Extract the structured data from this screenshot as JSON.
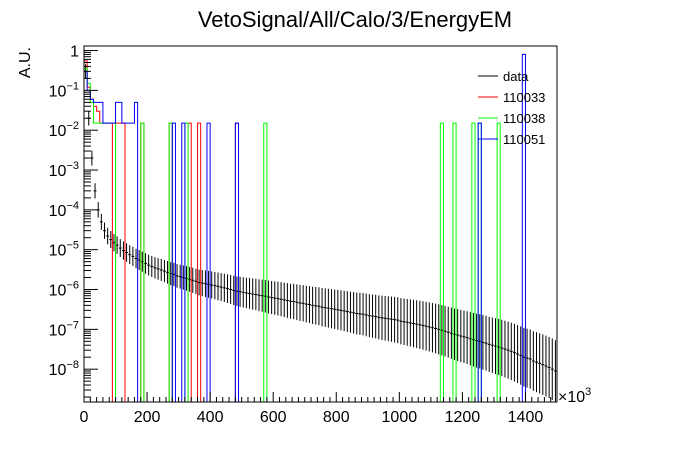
{
  "chart_data": {
    "type": "histogram",
    "title": "VetoSignal/All/Calo/3/EnergyEM",
    "ylabel": "A.U.",
    "xlabel": "",
    "x_exponent_label": "×10",
    "x_exponent_power": "3",
    "yscale": "log",
    "xlim": [
      0,
      1500
    ],
    "ylim": [
      1.5e-09,
      1.3
    ],
    "x_ticks": [
      0,
      200,
      400,
      600,
      800,
      1000,
      1200,
      1400
    ],
    "x_tick_labels": [
      "0",
      "200",
      "400",
      "600",
      "800",
      "1000",
      "1200",
      "1400"
    ],
    "y_ticks": [
      1e-08,
      1e-07,
      1e-06,
      1e-05,
      0.0001,
      0.001,
      0.01,
      0.1,
      1
    ],
    "y_tick_bases": [
      "10",
      "10",
      "10",
      "10",
      "10",
      "10",
      "10",
      "10",
      "1"
    ],
    "y_tick_exps": [
      "−8",
      "−7",
      "−6",
      "−5",
      "−4",
      "−3",
      "−2",
      "−1",
      ""
    ],
    "grid": false,
    "legend_position": "top-right",
    "bin_width": 10,
    "series": [
      {
        "name": "data",
        "color": "#000000",
        "style": "errorbar",
        "points": [
          [
            5,
            0.3
          ],
          [
            15,
            0.02
          ],
          [
            25,
            0.002
          ],
          [
            35,
            0.0003
          ],
          [
            45,
            0.0001
          ],
          [
            55,
            5e-05
          ],
          [
            65,
            3e-05
          ],
          [
            75,
            2.2e-05
          ],
          [
            85,
            1.8e-05
          ],
          [
            95,
            1.5e-05
          ],
          [
            105,
            1.3e-05
          ],
          [
            115,
            1.1e-05
          ],
          [
            125,
            9.5e-06
          ],
          [
            135,
            8.5e-06
          ],
          [
            145,
            7.5e-06
          ],
          [
            155,
            6.8e-06
          ],
          [
            165,
            6e-06
          ],
          [
            175,
            5.5e-06
          ],
          [
            185,
            5e-06
          ],
          [
            195,
            4.5e-06
          ],
          [
            205,
            4.1e-06
          ],
          [
            215,
            3.8e-06
          ],
          [
            225,
            3.5e-06
          ],
          [
            235,
            3.3e-06
          ],
          [
            245,
            3.1e-06
          ],
          [
            255,
            2.9e-06
          ],
          [
            265,
            2.7e-06
          ],
          [
            275,
            2.5e-06
          ],
          [
            285,
            2.4e-06
          ],
          [
            295,
            2.2e-06
          ],
          [
            305,
            2.1e-06
          ],
          [
            315,
            2e-06
          ],
          [
            325,
            1.9e-06
          ],
          [
            335,
            1.8e-06
          ],
          [
            345,
            1.7e-06
          ],
          [
            355,
            1.6e-06
          ],
          [
            365,
            1.5e-06
          ],
          [
            375,
            1.45e-06
          ],
          [
            385,
            1.4e-06
          ],
          [
            395,
            1.35e-06
          ],
          [
            405,
            1.3e-06
          ],
          [
            415,
            1.25e-06
          ],
          [
            425,
            1.2e-06
          ],
          [
            435,
            1.15e-06
          ],
          [
            445,
            1.1e-06
          ],
          [
            455,
            1.05e-06
          ],
          [
            465,
            1e-06
          ],
          [
            475,
            9.5e-07
          ],
          [
            485,
            9e-07
          ],
          [
            495,
            8.8e-07
          ],
          [
            505,
            8.5e-07
          ],
          [
            515,
            8.2e-07
          ],
          [
            525,
            8e-07
          ],
          [
            535,
            7.7e-07
          ],
          [
            545,
            7.5e-07
          ],
          [
            555,
            7.2e-07
          ],
          [
            565,
            7e-07
          ],
          [
            575,
            6.8e-07
          ],
          [
            585,
            6.5e-07
          ],
          [
            595,
            6.3e-07
          ],
          [
            605,
            6.1e-07
          ],
          [
            615,
            5.9e-07
          ],
          [
            625,
            5.7e-07
          ],
          [
            635,
            5.5e-07
          ],
          [
            645,
            5.3e-07
          ],
          [
            655,
            5.1e-07
          ],
          [
            665,
            5e-07
          ],
          [
            675,
            4.8e-07
          ],
          [
            685,
            4.6e-07
          ],
          [
            695,
            4.5e-07
          ],
          [
            705,
            4.3e-07
          ],
          [
            715,
            4.2e-07
          ],
          [
            725,
            4e-07
          ],
          [
            735,
            3.9e-07
          ],
          [
            745,
            3.8e-07
          ],
          [
            755,
            3.6e-07
          ],
          [
            765,
            3.5e-07
          ],
          [
            775,
            3.4e-07
          ],
          [
            785,
            3.3e-07
          ],
          [
            795,
            3.2e-07
          ],
          [
            805,
            3.1e-07
          ],
          [
            815,
            3e-07
          ],
          [
            825,
            2.9e-07
          ],
          [
            835,
            2.8e-07
          ],
          [
            845,
            2.7e-07
          ],
          [
            855,
            2.6e-07
          ],
          [
            865,
            2.5e-07
          ],
          [
            875,
            2.45e-07
          ],
          [
            885,
            2.4e-07
          ],
          [
            895,
            2.3e-07
          ],
          [
            905,
            2.2e-07
          ],
          [
            915,
            2.15e-07
          ],
          [
            925,
            2.1e-07
          ],
          [
            935,
            2e-07
          ],
          [
            945,
            1.95e-07
          ],
          [
            955,
            1.9e-07
          ],
          [
            965,
            1.85e-07
          ],
          [
            975,
            1.8e-07
          ],
          [
            985,
            1.75e-07
          ],
          [
            995,
            1.7e-07
          ],
          [
            1005,
            1.6e-07
          ],
          [
            1015,
            1.55e-07
          ],
          [
            1025,
            1.5e-07
          ],
          [
            1035,
            1.45e-07
          ],
          [
            1045,
            1.4e-07
          ],
          [
            1055,
            1.35e-07
          ],
          [
            1065,
            1.3e-07
          ],
          [
            1075,
            1.25e-07
          ],
          [
            1085,
            1.2e-07
          ],
          [
            1095,
            1.15e-07
          ],
          [
            1105,
            1.1e-07
          ],
          [
            1115,
            1.05e-07
          ],
          [
            1125,
            1e-07
          ],
          [
            1135,
            9.5e-08
          ],
          [
            1145,
            9e-08
          ],
          [
            1155,
            8.5e-08
          ],
          [
            1165,
            8e-08
          ],
          [
            1175,
            7.5e-08
          ],
          [
            1185,
            7.2e-08
          ],
          [
            1195,
            6.8e-08
          ],
          [
            1205,
            6.5e-08
          ],
          [
            1215,
            6.2e-08
          ],
          [
            1225,
            5.8e-08
          ],
          [
            1235,
            5.5e-08
          ],
          [
            1245,
            5.2e-08
          ],
          [
            1255,
            5e-08
          ],
          [
            1265,
            4.7e-08
          ],
          [
            1275,
            4.5e-08
          ],
          [
            1285,
            4.2e-08
          ],
          [
            1295,
            4e-08
          ],
          [
            1305,
            3.8e-08
          ],
          [
            1315,
            3.6e-08
          ],
          [
            1325,
            3.4e-08
          ],
          [
            1335,
            3.2e-08
          ],
          [
            1345,
            3e-08
          ],
          [
            1355,
            2.8e-08
          ],
          [
            1365,
            2.6e-08
          ],
          [
            1375,
            2.4e-08
          ],
          [
            1385,
            2.2e-08
          ],
          [
            1395,
            2e-08
          ],
          [
            1405,
            1.9e-08
          ],
          [
            1415,
            1.8e-08
          ],
          [
            1425,
            1.6e-08
          ],
          [
            1435,
            1.5e-08
          ],
          [
            1445,
            1.4e-08
          ],
          [
            1455,
            1.3e-08
          ],
          [
            1465,
            1.2e-08
          ],
          [
            1475,
            1.1e-08
          ],
          [
            1485,
            1e-08
          ],
          [
            1495,
            9e-09
          ]
        ]
      },
      {
        "name": "110033",
        "color": "#ff0000",
        "style": "step",
        "bins": [
          [
            0,
            0.55
          ],
          [
            10,
            0.12
          ],
          [
            20,
            0.06
          ],
          [
            30,
            0.04
          ],
          [
            40,
            0.03
          ],
          [
            50,
            0.015
          ],
          [
            60,
            0.015
          ],
          [
            70,
            0.015
          ],
          [
            80,
            0.015
          ],
          [
            100,
            0.015
          ],
          [
            110,
            0.015
          ],
          [
            120,
            0.015
          ],
          [
            180,
            0.015
          ],
          [
            270,
            0.015
          ],
          [
            330,
            0.015
          ],
          [
            360,
            0.015
          ],
          [
            480,
            0.015
          ]
        ]
      },
      {
        "name": "110038",
        "color": "#00ff00",
        "style": "step",
        "bins": [
          [
            0,
            0.35
          ],
          [
            10,
            0.15
          ],
          [
            20,
            0.05
          ],
          [
            30,
            0.015
          ],
          [
            40,
            0.015
          ],
          [
            50,
            0.015
          ],
          [
            60,
            0.015
          ],
          [
            70,
            0.015
          ],
          [
            80,
            0.015
          ],
          [
            90,
            0.015
          ],
          [
            180,
            0.015
          ],
          [
            270,
            0.015
          ],
          [
            320,
            0.015
          ],
          [
            570,
            0.015
          ],
          [
            1130,
            0.015
          ],
          [
            1170,
            0.015
          ],
          [
            1230,
            0.015
          ],
          [
            1250,
            0.015
          ],
          [
            1310,
            0.015
          ]
        ]
      },
      {
        "name": "110051",
        "color": "#0000ff",
        "style": "step",
        "bins": [
          [
            0,
            0.3
          ],
          [
            10,
            0.1
          ],
          [
            20,
            0.06
          ],
          [
            30,
            0.05
          ],
          [
            40,
            0.05
          ],
          [
            50,
            0.05
          ],
          [
            60,
            0.015
          ],
          [
            70,
            0.015
          ],
          [
            80,
            0.015
          ],
          [
            90,
            0.015
          ],
          [
            100,
            0.05
          ],
          [
            110,
            0.05
          ],
          [
            120,
            0.015
          ],
          [
            130,
            0.015
          ],
          [
            140,
            0.015
          ],
          [
            150,
            0.015
          ],
          [
            160,
            0.05
          ],
          [
            280,
            0.015
          ],
          [
            310,
            0.015
          ],
          [
            390,
            0.015
          ],
          [
            480,
            0.015
          ],
          [
            1250,
            0.015
          ],
          [
            1390,
            0.8
          ]
        ]
      }
    ]
  }
}
